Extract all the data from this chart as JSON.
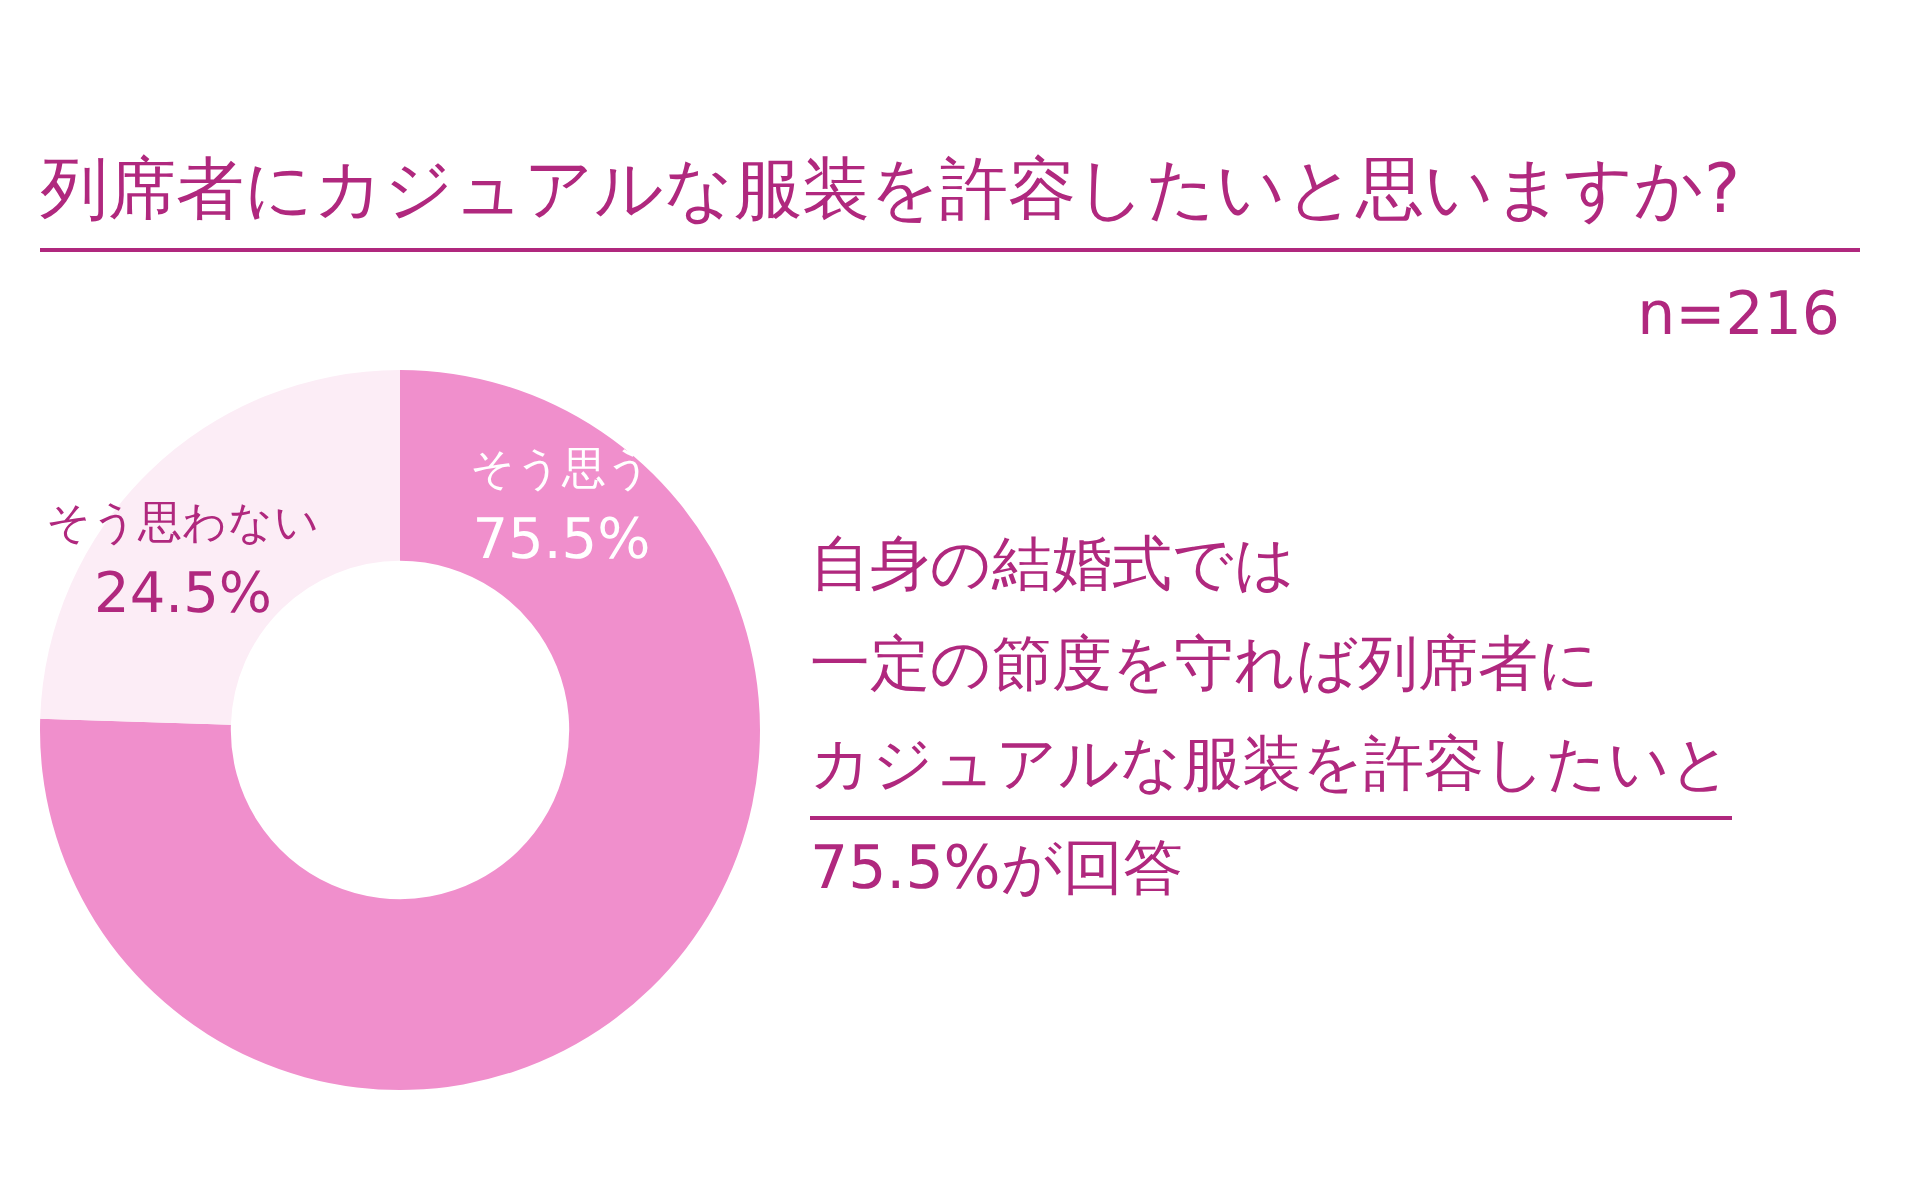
{
  "chart_data": {
    "type": "donut",
    "title": "列席者にカジュアルな服装を許容したいと思いますか?",
    "subtitle": "n=216",
    "categories": [
      "そう思う",
      "そう思わない"
    ],
    "values": [
      75.5,
      24.5
    ],
    "value_labels": [
      "75.5%",
      "24.5%"
    ],
    "colors": [
      "#f08fcc",
      "#fcedf6"
    ],
    "legend": false,
    "annotations": [
      "自身の結婚式では",
      "一定の節度を守れば列席者に",
      "カジュアルな服装を許容したいと",
      "75.5%が回答"
    ]
  }
}
